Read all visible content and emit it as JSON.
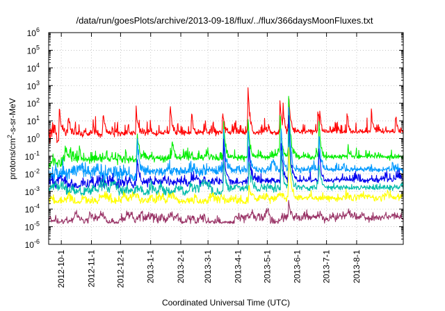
{
  "chart_data": {
    "type": "line",
    "title": "/data/run/goesPlots/archive/2013-09-18/flux/../flux/366daysMoonFluxes.txt",
    "xlabel": "Coordinated Universal Time (UTC)",
    "ylabel_parts": [
      "protons/cm",
      "2",
      "-s-sr-MeV"
    ],
    "yscale": "log",
    "ylim": [
      1e-06,
      1000000.0
    ],
    "xlim": [
      "2012-09-18",
      "2013-09-18"
    ],
    "grid": true,
    "legend": "none",
    "ytick_labels": [
      {
        "exp": -6,
        "text": "10",
        "sup": "-6"
      },
      {
        "exp": -5,
        "text": "10",
        "sup": "-5"
      },
      {
        "exp": -4,
        "text": "10",
        "sup": "-4"
      },
      {
        "exp": -3,
        "text": "10",
        "sup": "-3"
      },
      {
        "exp": -2,
        "text": "10",
        "sup": "-2"
      },
      {
        "exp": -1,
        "text": "10",
        "sup": "-1"
      },
      {
        "exp": 0,
        "text": "10",
        "sup": "0"
      },
      {
        "exp": 1,
        "text": "10",
        "sup": "1"
      },
      {
        "exp": 2,
        "text": "10",
        "sup": "2"
      },
      {
        "exp": 3,
        "text": "10",
        "sup": "3"
      },
      {
        "exp": 4,
        "text": "10",
        "sup": "4"
      },
      {
        "exp": 5,
        "text": "10",
        "sup": "5"
      },
      {
        "exp": 6,
        "text": "10",
        "sup": "6"
      }
    ],
    "xtick_labels": [
      {
        "date": "2012-10-01",
        "label": "2012-10-1"
      },
      {
        "date": "2012-11-01",
        "label": "2012-11-1"
      },
      {
        "date": "2012-12-01",
        "label": "2012-12-1"
      },
      {
        "date": "2013-01-01",
        "label": "2013-1-1"
      },
      {
        "date": "2013-02-01",
        "label": "2013-2-1"
      },
      {
        "date": "2013-03-01",
        "label": "2013-3-1"
      },
      {
        "date": "2013-04-01",
        "label": "2013-4-1"
      },
      {
        "date": "2013-05-01",
        "label": "2013-5-1"
      },
      {
        "date": "2013-06-01",
        "label": "2013-6-1"
      },
      {
        "date": "2013-07-01",
        "label": "2013-7-1"
      },
      {
        "date": "2013-08-01",
        "label": "2013-8-1"
      }
    ],
    "series": [
      {
        "color": "#ff0000",
        "base": 1.5,
        "noise": 0.9,
        "floor": 0.02,
        "peaks": [
          [
            "2012-09-29",
            60
          ],
          [
            "2012-10-08",
            20
          ],
          [
            "2012-11-13",
            30
          ],
          [
            "2012-12-17",
            40
          ],
          [
            "2013-01-21",
            80
          ],
          [
            "2013-02-12",
            30
          ],
          [
            "2013-03-16",
            40
          ],
          [
            "2013-04-11",
            1200
          ],
          [
            "2013-05-14",
            150
          ],
          [
            "2013-05-17",
            100
          ],
          [
            "2013-05-23",
            300
          ],
          [
            "2013-06-22",
            50
          ],
          [
            "2013-06-24",
            40
          ],
          [
            "2013-07-22",
            30
          ],
          [
            "2013-08-16",
            40
          ],
          [
            "2013-09-10",
            30
          ]
        ]
      },
      {
        "color": "#00ee00",
        "base": 0.06,
        "noise": 0.6,
        "floor": 0.02,
        "peaks": [
          [
            "2012-10-05",
            0.5
          ],
          [
            "2012-12-18",
            3
          ],
          [
            "2013-01-23",
            1
          ],
          [
            "2013-03-17",
            8
          ],
          [
            "2013-04-11",
            20
          ],
          [
            "2013-05-14",
            40
          ],
          [
            "2013-05-23",
            400
          ],
          [
            "2013-06-23",
            10
          ],
          [
            "2013-07-23",
            0.5
          ]
        ]
      },
      {
        "color": "#0099ff",
        "base": 0.012,
        "noise": 0.6,
        "floor": 0.004,
        "peaks": [
          [
            "2012-12-18",
            1
          ],
          [
            "2013-03-17",
            3
          ],
          [
            "2013-04-11",
            5
          ],
          [
            "2013-05-15",
            8
          ],
          [
            "2013-05-23",
            150
          ],
          [
            "2013-06-23",
            3
          ]
        ]
      },
      {
        "color": "#0000ee",
        "base": 0.003,
        "noise": 0.5,
        "floor": 0.0015,
        "peaks": [
          [
            "2012-12-18",
            0.1
          ],
          [
            "2013-03-17",
            0.8
          ],
          [
            "2013-04-12",
            0.5
          ],
          [
            "2013-05-15",
            1
          ],
          [
            "2013-05-23",
            30
          ],
          [
            "2013-06-23",
            0.5
          ]
        ]
      },
      {
        "color": "#00bbaa",
        "base": 0.0012,
        "noise": 0.4,
        "floor": 0.0006,
        "peaks": [
          [
            "2013-03-17",
            0.06
          ],
          [
            "2013-04-12",
            0.08
          ],
          [
            "2013-05-15",
            0.3
          ],
          [
            "2013-05-23",
            5
          ],
          [
            "2013-06-23",
            0.05
          ]
        ]
      },
      {
        "color": "#ffff00",
        "base": 0.00035,
        "noise": 0.35,
        "floor": 0.0002,
        "peaks": [
          [
            "2013-04-12",
            0.003
          ],
          [
            "2013-05-23",
            0.5
          ]
        ]
      },
      {
        "color": "#993366",
        "base": 3e-05,
        "noise": 0.3,
        "floor": 1.5e-05,
        "peaks": [
          [
            "2013-05-23",
            0.0003
          ]
        ]
      }
    ]
  }
}
